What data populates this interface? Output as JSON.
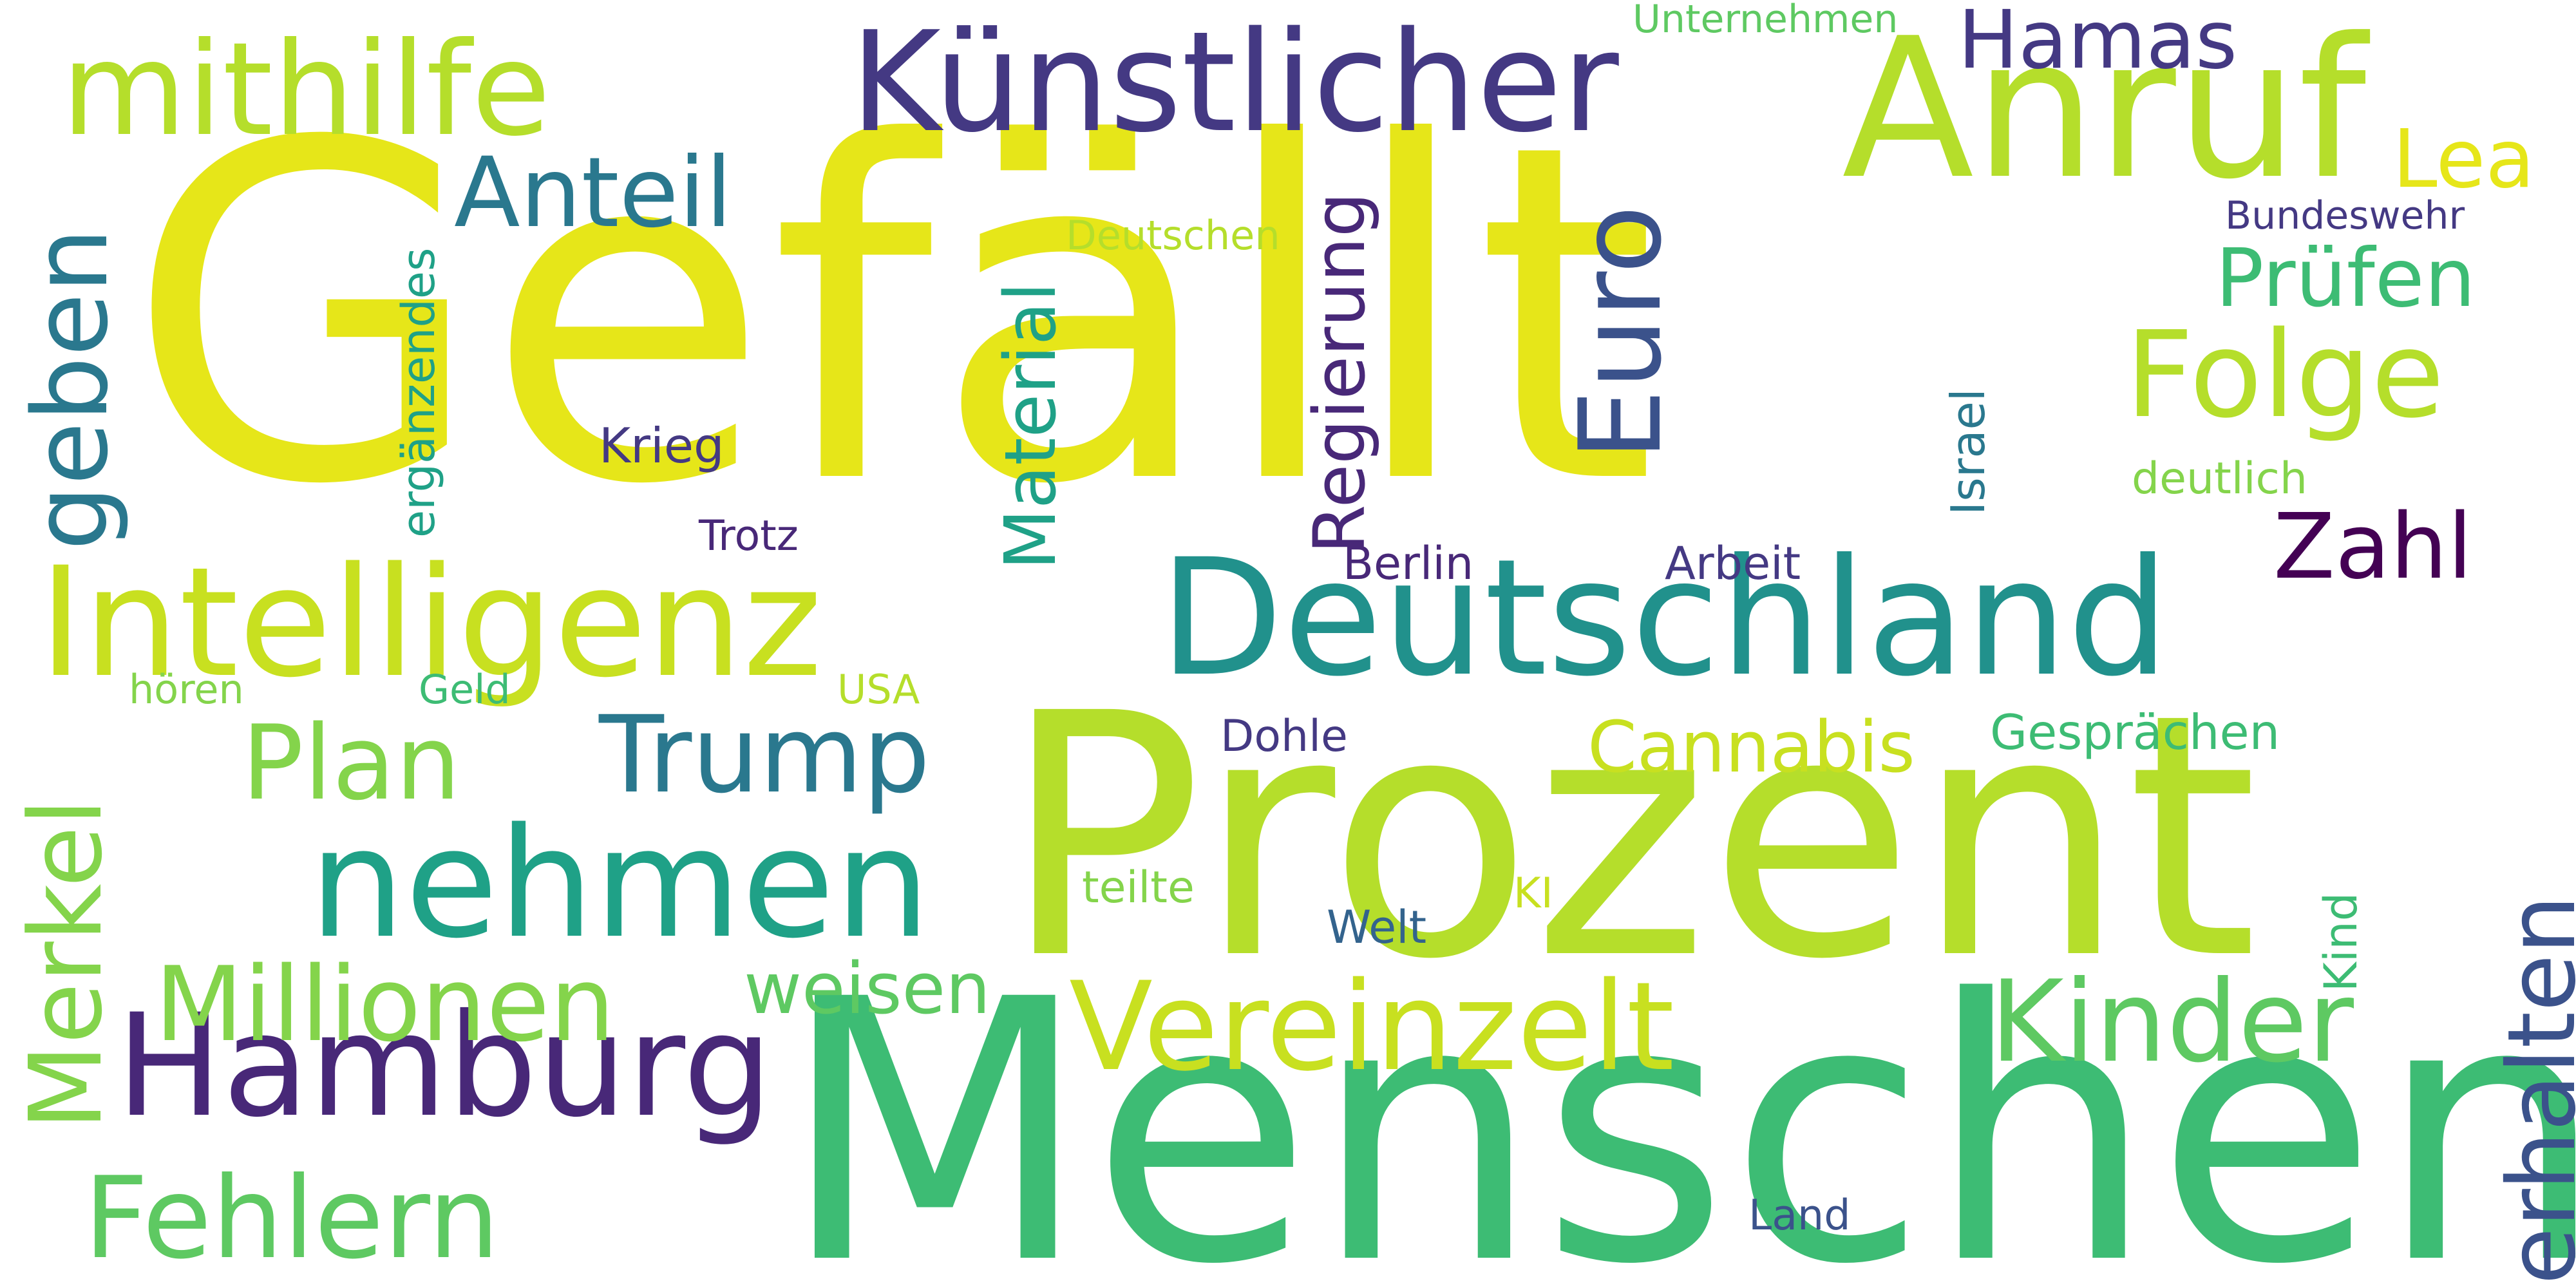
{
  "words": {
    "gefaellt": "Gefällt",
    "prozent": "Prozent",
    "menschen": "Menschen",
    "deutschland": "Deutschland",
    "intelligenz": "Intelligenz",
    "kuenstlicher": "Künstlicher",
    "anruf": "Anruf",
    "mithilfe": "mithilfe",
    "nehmen": "nehmen",
    "hamburg": "Hamburg",
    "vereinzelt": "Vereinzelt",
    "euro": "Euro",
    "geben": "geben",
    "merkel": "Merkel",
    "millionen": "Millionen",
    "fehlern": "Fehlern",
    "folge": "Folge",
    "kinder": "Kinder",
    "trump": "Trump",
    "plan": "Plan",
    "erhalten": "erhalten",
    "hamas": "Hamas",
    "zahl": "Zahl",
    "anteil": "Anteil",
    "lea": "Lea",
    "pruefen": "Prüfen",
    "regierung": "Regierung",
    "material": "Material",
    "cannabis": "Cannabis",
    "weisen": "weisen",
    "ergaenzendes": "ergänzendes",
    "krieg": "Krieg",
    "gespraechen": "Gesprächen",
    "unternehmen": "Unternehmen",
    "deutschen": "Deutschen",
    "bundeswehr": "Bundeswehr",
    "israel": "Israel",
    "deutlich": "deutlich",
    "trotz": "Trotz",
    "berlin": "Berlin",
    "arbeit": "Arbeit",
    "hoeren": "hören",
    "geld": "Geld",
    "usa": "USA",
    "dohle": "Dohle",
    "teilte": "teilte",
    "ki": "KI",
    "welt": "Welt",
    "kind": "Kind",
    "land": "Land"
  },
  "colors": {
    "yellow": "#e6e619",
    "yellow_green": "#c8e020",
    "lime": "#b5de2b",
    "light_green": "#84d44b",
    "green": "#5ec962",
    "mid_green": "#3dbc74",
    "sea_green": "#22a884",
    "teal_green": "#1fa187",
    "teal": "#21918c",
    "blue_teal": "#2a788e",
    "slate_blue": "#33638d",
    "blue": "#3b528b",
    "indigo": "#443983",
    "purple": "#482878",
    "dark_purple": "#440154"
  }
}
